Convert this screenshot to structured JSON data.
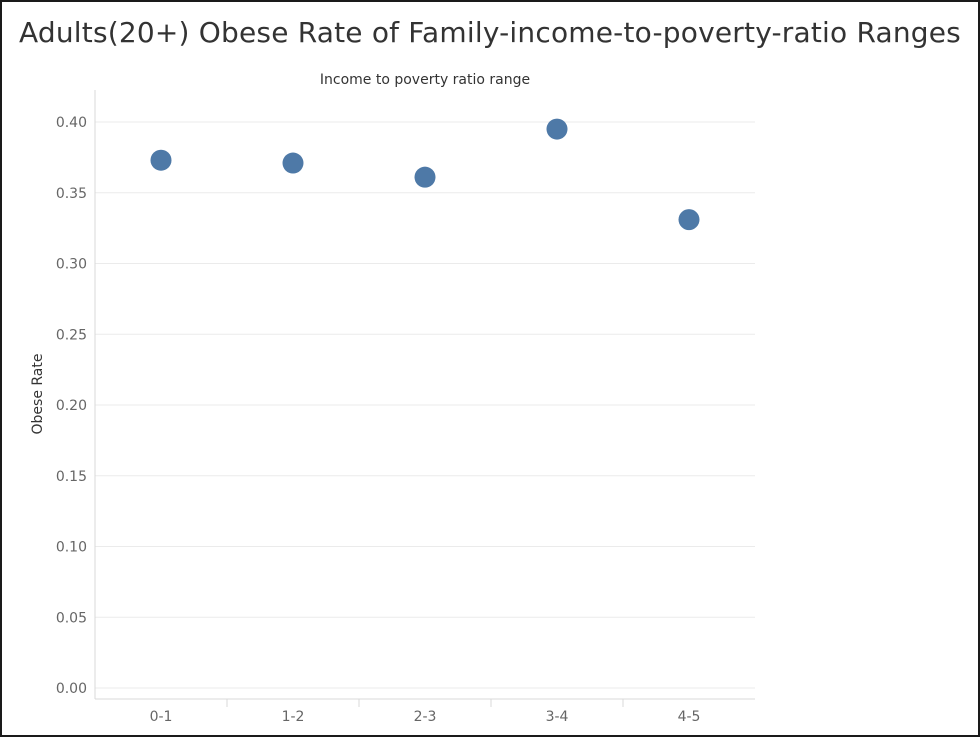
{
  "chart_data": {
    "type": "scatter",
    "title": "Adults(20+) Obese Rate  of Family-income-to-poverty-ratio Ranges",
    "xlabel": "Income to poverty ratio range",
    "ylabel": "Obese Rate",
    "categories": [
      "0-1",
      "1-2",
      "2-3",
      "3-4",
      "4-5"
    ],
    "values": [
      0.373,
      0.371,
      0.361,
      0.395,
      0.331
    ],
    "ylim": [
      0,
      0.4
    ],
    "yticks": [
      "0.00",
      "0.05",
      "0.10",
      "0.15",
      "0.20",
      "0.25",
      "0.30",
      "0.35",
      "0.40"
    ],
    "x_axis_position": "top",
    "grid": true,
    "colors": {
      "marker": "#4e79a7",
      "gridline": "#ebebeb",
      "axis": "#d9d9d9"
    }
  }
}
